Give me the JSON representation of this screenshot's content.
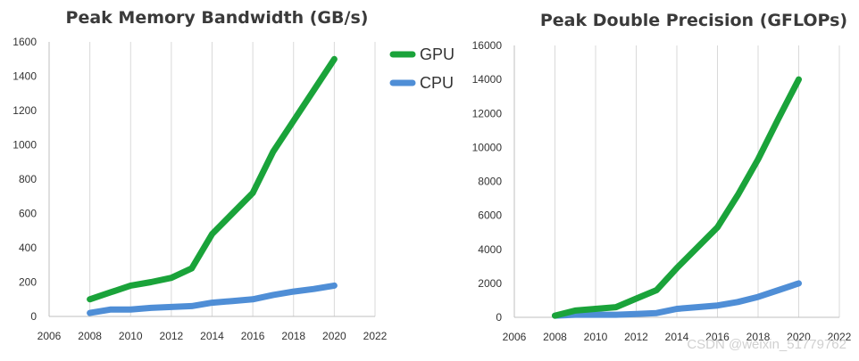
{
  "chart_data": [
    {
      "type": "line",
      "title": "Peak Memory Bandwidth (GB/s)",
      "xlabel": "",
      "ylabel": "",
      "xlim": [
        2006,
        2022
      ],
      "ylim": [
        0,
        1600
      ],
      "xticks": [
        2006,
        2008,
        2010,
        2012,
        2014,
        2016,
        2018,
        2020,
        2022
      ],
      "yticks": [
        0,
        200,
        400,
        600,
        800,
        1000,
        1200,
        1400,
        1600
      ],
      "grid": "vertical",
      "legend": "right",
      "series": [
        {
          "name": "GPU",
          "color": "#1aa33a",
          "x": [
            2008,
            2009,
            2010,
            2011,
            2012,
            2013,
            2014,
            2015,
            2016,
            2017,
            2018,
            2019,
            2020
          ],
          "y": [
            100,
            140,
            180,
            200,
            225,
            280,
            480,
            600,
            720,
            960,
            1140,
            1320,
            1500
          ]
        },
        {
          "name": "CPU",
          "color": "#4f8ed6",
          "x": [
            2008,
            2009,
            2010,
            2011,
            2012,
            2013,
            2014,
            2015,
            2016,
            2017,
            2018,
            2019,
            2020
          ],
          "y": [
            20,
            40,
            40,
            50,
            55,
            60,
            80,
            90,
            100,
            125,
            145,
            160,
            180
          ]
        }
      ]
    },
    {
      "type": "line",
      "title": "Peak Double Precision (GFLOPs)",
      "xlabel": "",
      "ylabel": "",
      "xlim": [
        2006,
        2022
      ],
      "ylim": [
        0,
        16000
      ],
      "xticks": [
        2006,
        2008,
        2010,
        2012,
        2014,
        2016,
        2018,
        2020,
        2022
      ],
      "yticks": [
        0,
        2000,
        4000,
        6000,
        8000,
        10000,
        12000,
        14000,
        16000
      ],
      "grid": "vertical",
      "legend": "none",
      "series": [
        {
          "name": "GPU",
          "color": "#1aa33a",
          "x": [
            2008,
            2009,
            2010,
            2011,
            2012,
            2013,
            2014,
            2015,
            2016,
            2017,
            2018,
            2019,
            2020
          ],
          "y": [
            100,
            400,
            500,
            600,
            1100,
            1600,
            2900,
            4100,
            5300,
            7200,
            9300,
            11700,
            14000
          ]
        },
        {
          "name": "CPU",
          "color": "#4f8ed6",
          "x": [
            2008,
            2009,
            2010,
            2011,
            2012,
            2013,
            2014,
            2015,
            2016,
            2017,
            2018,
            2019,
            2020
          ],
          "y": [
            100,
            150,
            150,
            150,
            200,
            250,
            500,
            600,
            700,
            900,
            1200,
            1600,
            2000
          ]
        }
      ]
    }
  ],
  "watermark": "CSDN @weixin_51779762"
}
